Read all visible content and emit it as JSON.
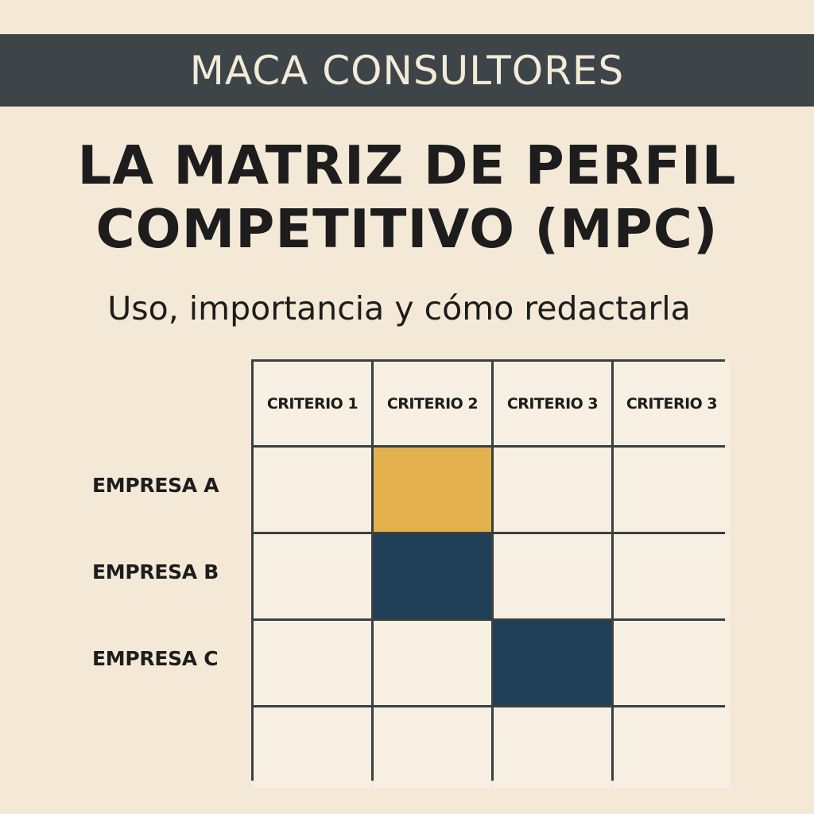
{
  "header": {
    "brand": "MACA CONSULTORES"
  },
  "title": {
    "line1": "LA MATRIZ DE PERFIL",
    "line2": "COMPETITIVO (MPC)"
  },
  "subtitle": "Uso, importancia y cómo redactarla",
  "matrix": {
    "columns": [
      "CRITERIO 1",
      "CRITERIO 2",
      "CRITERIO 3",
      "CRITERIO 3"
    ],
    "rows": [
      "EMPRESA A",
      "EMPRESA B",
      "EMPRESA C",
      ""
    ],
    "highlights": [
      {
        "row": 0,
        "col": 1,
        "color": "#e3b24e"
      },
      {
        "row": 1,
        "col": 1,
        "color": "#1f3f56"
      },
      {
        "row": 2,
        "col": 2,
        "color": "#1f3f56"
      }
    ]
  },
  "colors": {
    "background": "#f4e9d6",
    "header_bar": "#3d4548",
    "cell": "#f7f0e2",
    "grid_line": "#3a3f42",
    "accent_yellow": "#e3b24e",
    "accent_navy": "#1f3f56"
  }
}
